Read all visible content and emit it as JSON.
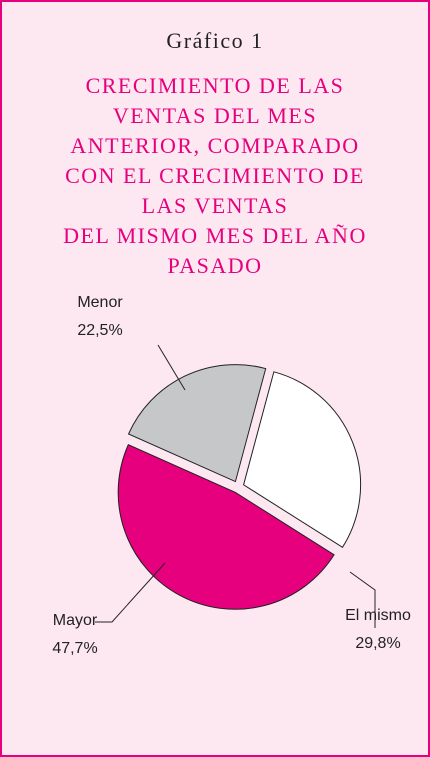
{
  "chart_data": {
    "type": "pie",
    "chart_label": "Gráfico 1",
    "title": [
      "CRECIMIENTO DE LAS",
      "VENTAS DEL MES",
      "ANTERIOR, COMPARADO",
      "CON EL CRECIMIENTO DE",
      "LAS VENTAS",
      "DEL MISMO MES DEL AÑO",
      "PASADO"
    ],
    "categories": [
      "El mismo",
      "Mayor",
      "Menor"
    ],
    "values": [
      29.8,
      47.7,
      22.5
    ],
    "value_labels": [
      "29,8%",
      "47,7%",
      "22,5%"
    ],
    "colors": [
      "#ffffff",
      "#e6007e",
      "#c6c7c9"
    ]
  }
}
